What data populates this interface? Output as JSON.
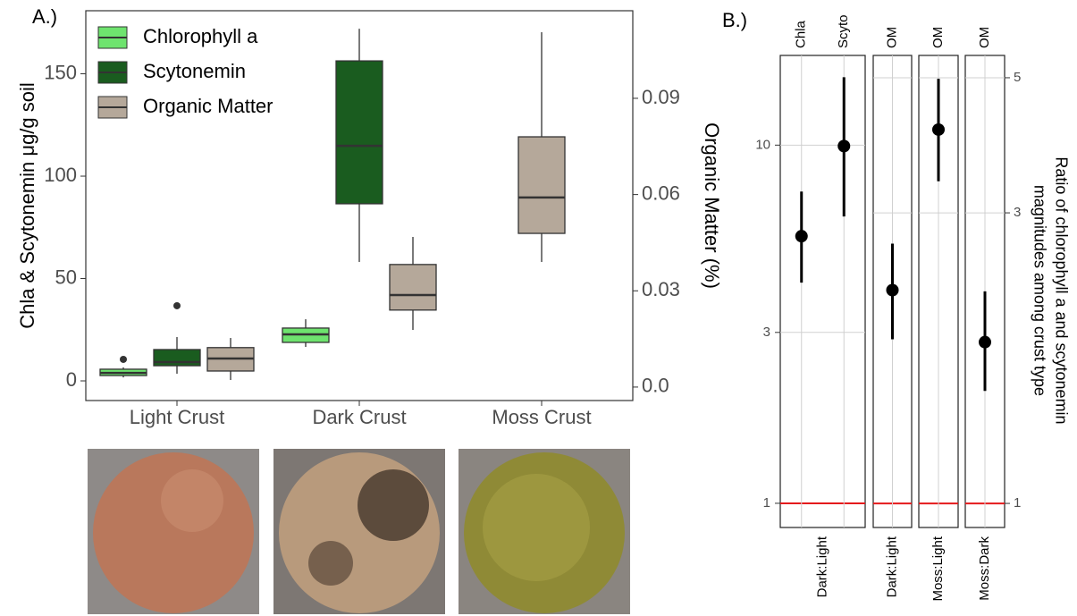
{
  "chart_data": [
    {
      "type": "boxplot",
      "panel_label": "A.)",
      "categories": [
        "Light Crust",
        "Dark Crust",
        "Moss Crust"
      ],
      "ylabel": "Chla & Scytonemin μg/g soil",
      "y2label": "Organic Matter (%)",
      "ylim": [
        -9.6,
        180.8
      ],
      "yticks": [
        0,
        50,
        100,
        150
      ],
      "y2lim": [
        -0.0042,
        0.1173
      ],
      "y2ticks": [
        {
          "value": 0,
          "label": "0.0"
        },
        0.03,
        0.06,
        0.09
      ],
      "legend": "top-left",
      "series": [
        {
          "name": "Chlorophyll a",
          "color": "#6ee36e",
          "values": [
            {
              "min": 1.7,
              "q1": 2.6,
              "median": 3.9,
              "q3": 5.7,
              "max": 6.6,
              "outliers": [
                10.5
              ]
            },
            {
              "min": 16.6,
              "q1": 18.8,
              "median": 22.7,
              "q3": 25.8,
              "max": 30.1,
              "outliers": []
            },
            null
          ]
        },
        {
          "name": "Scytonemin",
          "color": "#1a5c1f",
          "values": [
            {
              "min": 3.5,
              "q1": 7.4,
              "median": 9.2,
              "q3": 15.3,
              "max": 21.4,
              "outliers": [
                36.7
              ]
            },
            {
              "min": 58.1,
              "q1": 86.5,
              "median": 114.8,
              "q3": 156.3,
              "max": 172,
              "outliers": []
            },
            null
          ]
        },
        {
          "name": "Organic Matter",
          "color": "#b5a89a",
          "axis": "y2",
          "values": [
            {
              "min": 0.0022,
              "q1": 0.005,
              "median": 0.0089,
              "q3": 0.0123,
              "max": 0.0153,
              "outliers": []
            },
            {
              "min": 0.0178,
              "q1": 0.024,
              "median": 0.0287,
              "q3": 0.0382,
              "max": 0.0468,
              "outliers": []
            },
            {
              "min": 0.039,
              "q1": 0.0479,
              "median": 0.0591,
              "q3": 0.078,
              "max": 0.1106,
              "outliers": []
            }
          ]
        }
      ]
    },
    {
      "type": "pointrange",
      "panel_label": "B.)",
      "y2label": [
        "Ratio of chlorophyll a and scytonemin",
        "magnitudes among crust type"
      ],
      "log_scale": true,
      "ylim": [
        0.856,
        17.8
      ],
      "yticks": [
        1,
        3,
        10
      ],
      "y2lim": [
        0.913,
        5.44
      ],
      "y2ticks": [
        1,
        3,
        5
      ],
      "color": "#000000",
      "reference_line": {
        "value": 1,
        "color": "#e41a1c"
      },
      "facets": [
        {
          "x_label": "Dark:Light",
          "axis": "y",
          "labels": [
            "Chla",
            "Scyto"
          ],
          "values": [
            5.57,
            9.94
          ],
          "lower": [
            4.13,
            6.32
          ],
          "upper": [
            7.42,
            15.47
          ]
        },
        {
          "x_label": "Dark:Light",
          "axis": "y2",
          "labels": [
            "OM"
          ],
          "values": [
            2.24
          ],
          "lower": [
            1.86
          ],
          "upper": [
            2.67
          ]
        },
        {
          "x_label": "Moss:Light",
          "axis": "y2",
          "labels": [
            "OM"
          ],
          "values": [
            4.11
          ],
          "lower": [
            3.38
          ],
          "upper": [
            4.98
          ]
        },
        {
          "x_label": "Moss:Dark",
          "axis": "y2",
          "labels": [
            "OM"
          ],
          "values": [
            1.84
          ],
          "lower": [
            1.53
          ],
          "upper": [
            2.23
          ]
        }
      ]
    }
  ]
}
